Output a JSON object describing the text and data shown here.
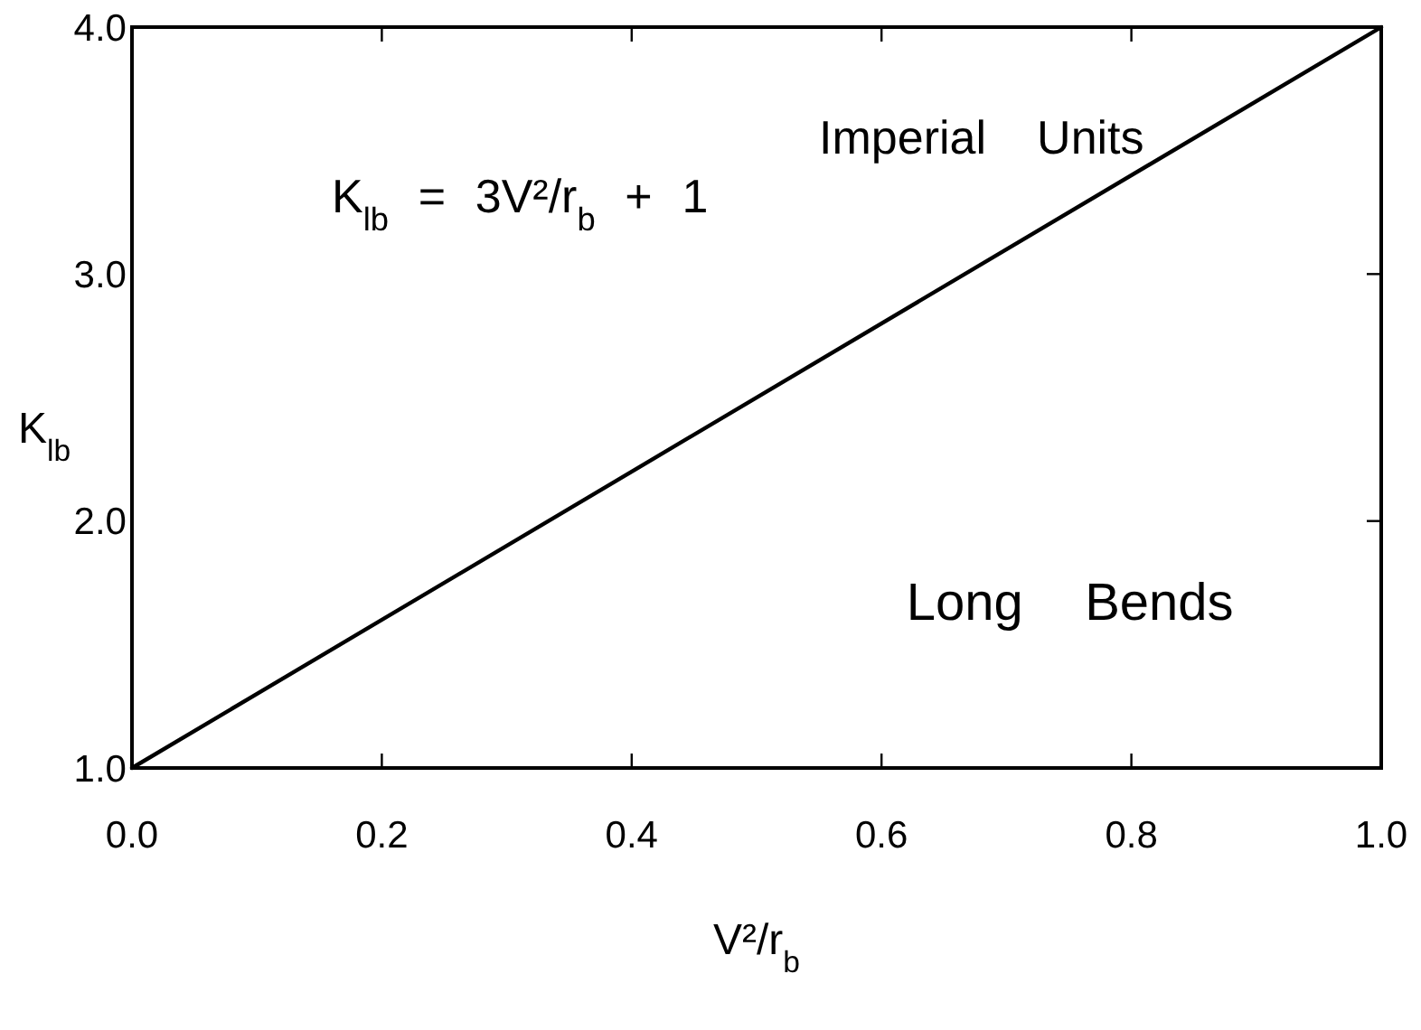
{
  "chart_data": {
    "type": "line",
    "xlabel": "V²/r$_{b}$",
    "ylabel": "K$_{lb}$",
    "annotations": [
      "K$_{lb}$ = 3V²/r$_{b}$ + 1",
      "Imperial Units",
      "Long Bends"
    ],
    "x": [
      0,
      1
    ],
    "values": [
      1,
      4
    ],
    "color": "#000000",
    "xlim": [
      0,
      1
    ],
    "ylim": [
      1,
      4
    ],
    "xticks": [
      {
        "value": 0,
        "label": "0.0"
      },
      0.2,
      0.4,
      0.6,
      0.8,
      {
        "value": 1,
        "label": "1.0"
      }
    ],
    "yticks": [
      {
        "value": 1,
        "label": "1.0"
      },
      {
        "value": 2,
        "label": "2.0"
      },
      {
        "value": 3,
        "label": "3.0"
      },
      {
        "value": 4,
        "label": "4.0"
      }
    ]
  }
}
